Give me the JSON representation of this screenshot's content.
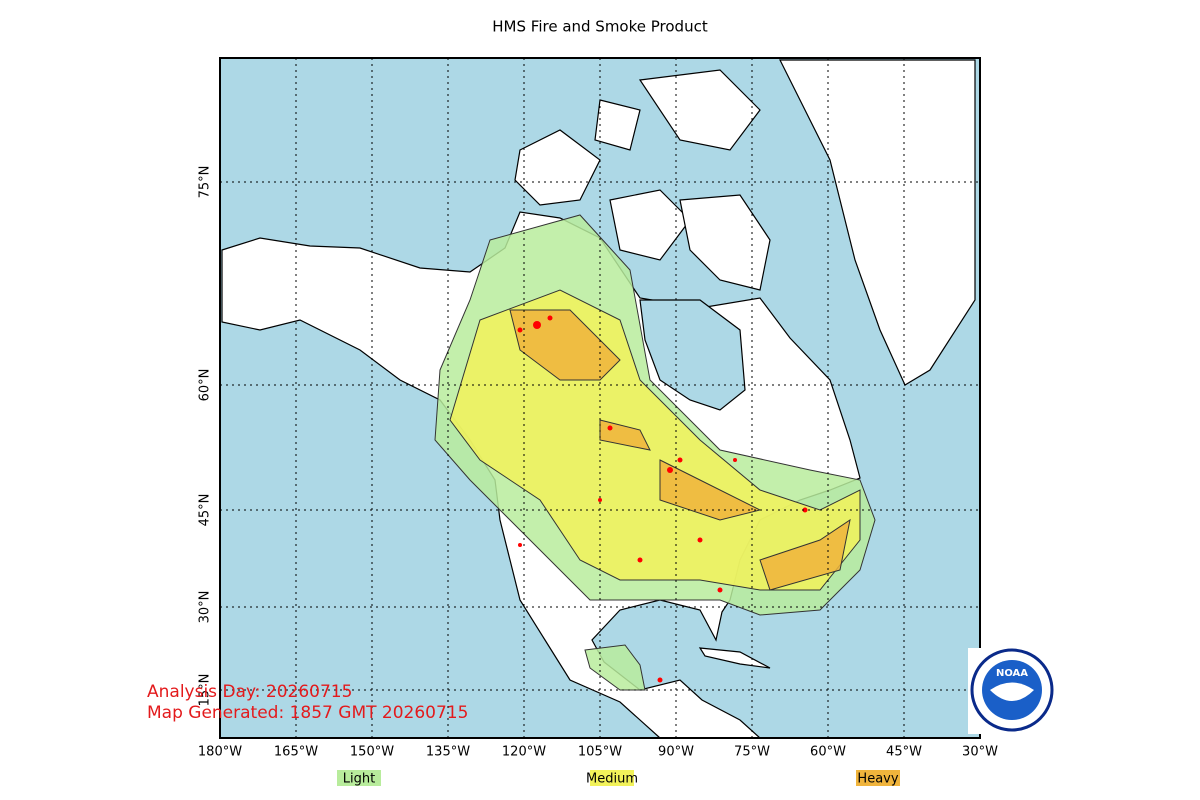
{
  "title": "HMS Fire and Smoke Product",
  "longitude_labels": [
    "180°W",
    "165°W",
    "150°W",
    "135°W",
    "120°W",
    "105°W",
    "90°W",
    "75°W",
    "60°W",
    "45°W",
    "30°W"
  ],
  "latitude_labels": [
    "75°N",
    "60°N",
    "45°N",
    "30°N",
    "15°N"
  ],
  "legend": [
    {
      "label": "Light",
      "color": "#b8ec9c"
    },
    {
      "label": "Medium",
      "color": "#f2f25a"
    },
    {
      "label": "Heavy",
      "color": "#f0b43c"
    }
  ],
  "annotations": [
    "Analysis Day: 20260715",
    "Map Generated: 1857 GMT 20260715"
  ],
  "logo": "NOAA"
}
